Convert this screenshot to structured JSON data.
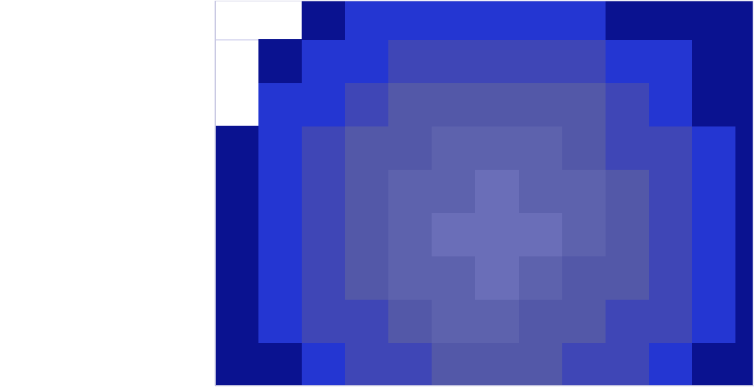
{
  "chart_data": {
    "type": "heatmap",
    "x": [
      0.25,
      0.75,
      1.25,
      1.75,
      2.25,
      2.75,
      3.25,
      3.75,
      4.25,
      4.75,
      5.25,
      5.75,
      6.25
    ],
    "y": [
      0.25,
      0.75,
      1.25,
      1.75,
      2.25,
      2.75,
      3.25,
      3.75,
      4.25
    ],
    "cells": [
      [
        6,
        6,
        5,
        4,
        4,
        3,
        3,
        3,
        4,
        4,
        5,
        6,
        6
      ],
      [
        6,
        5,
        4,
        4,
        3,
        2,
        2,
        3,
        3,
        4,
        4,
        5,
        6
      ],
      [
        6,
        5,
        4,
        3,
        2,
        2,
        1,
        2,
        3,
        3,
        4,
        5,
        6
      ],
      [
        6,
        5,
        4,
        3,
        2,
        1,
        1,
        1,
        2,
        3,
        4,
        5,
        6
      ],
      [
        6,
        5,
        4,
        3,
        2,
        2,
        1,
        2,
        2,
        3,
        4,
        5,
        6
      ],
      [
        6,
        5,
        4,
        3,
        3,
        2,
        2,
        2,
        3,
        4,
        4,
        5,
        6
      ],
      [
        null,
        5,
        5,
        4,
        3,
        3,
        3,
        3,
        3,
        4,
        5,
        6,
        6
      ],
      [
        null,
        6,
        5,
        5,
        4,
        4,
        4,
        4,
        4,
        5,
        5,
        6,
        6
      ],
      [
        null,
        null,
        6,
        5,
        5,
        5,
        5,
        5,
        5,
        6,
        6,
        6,
        6
      ]
    ],
    "xlim": [
      0,
      6.2
    ],
    "ylim": [
      0,
      4.45
    ],
    "xticks": [
      0,
      1,
      2,
      3,
      4,
      5,
      6
    ],
    "yticks": [
      0,
      1,
      2,
      3,
      4
    ],
    "grid": true,
    "tick_labels": false
  }
}
